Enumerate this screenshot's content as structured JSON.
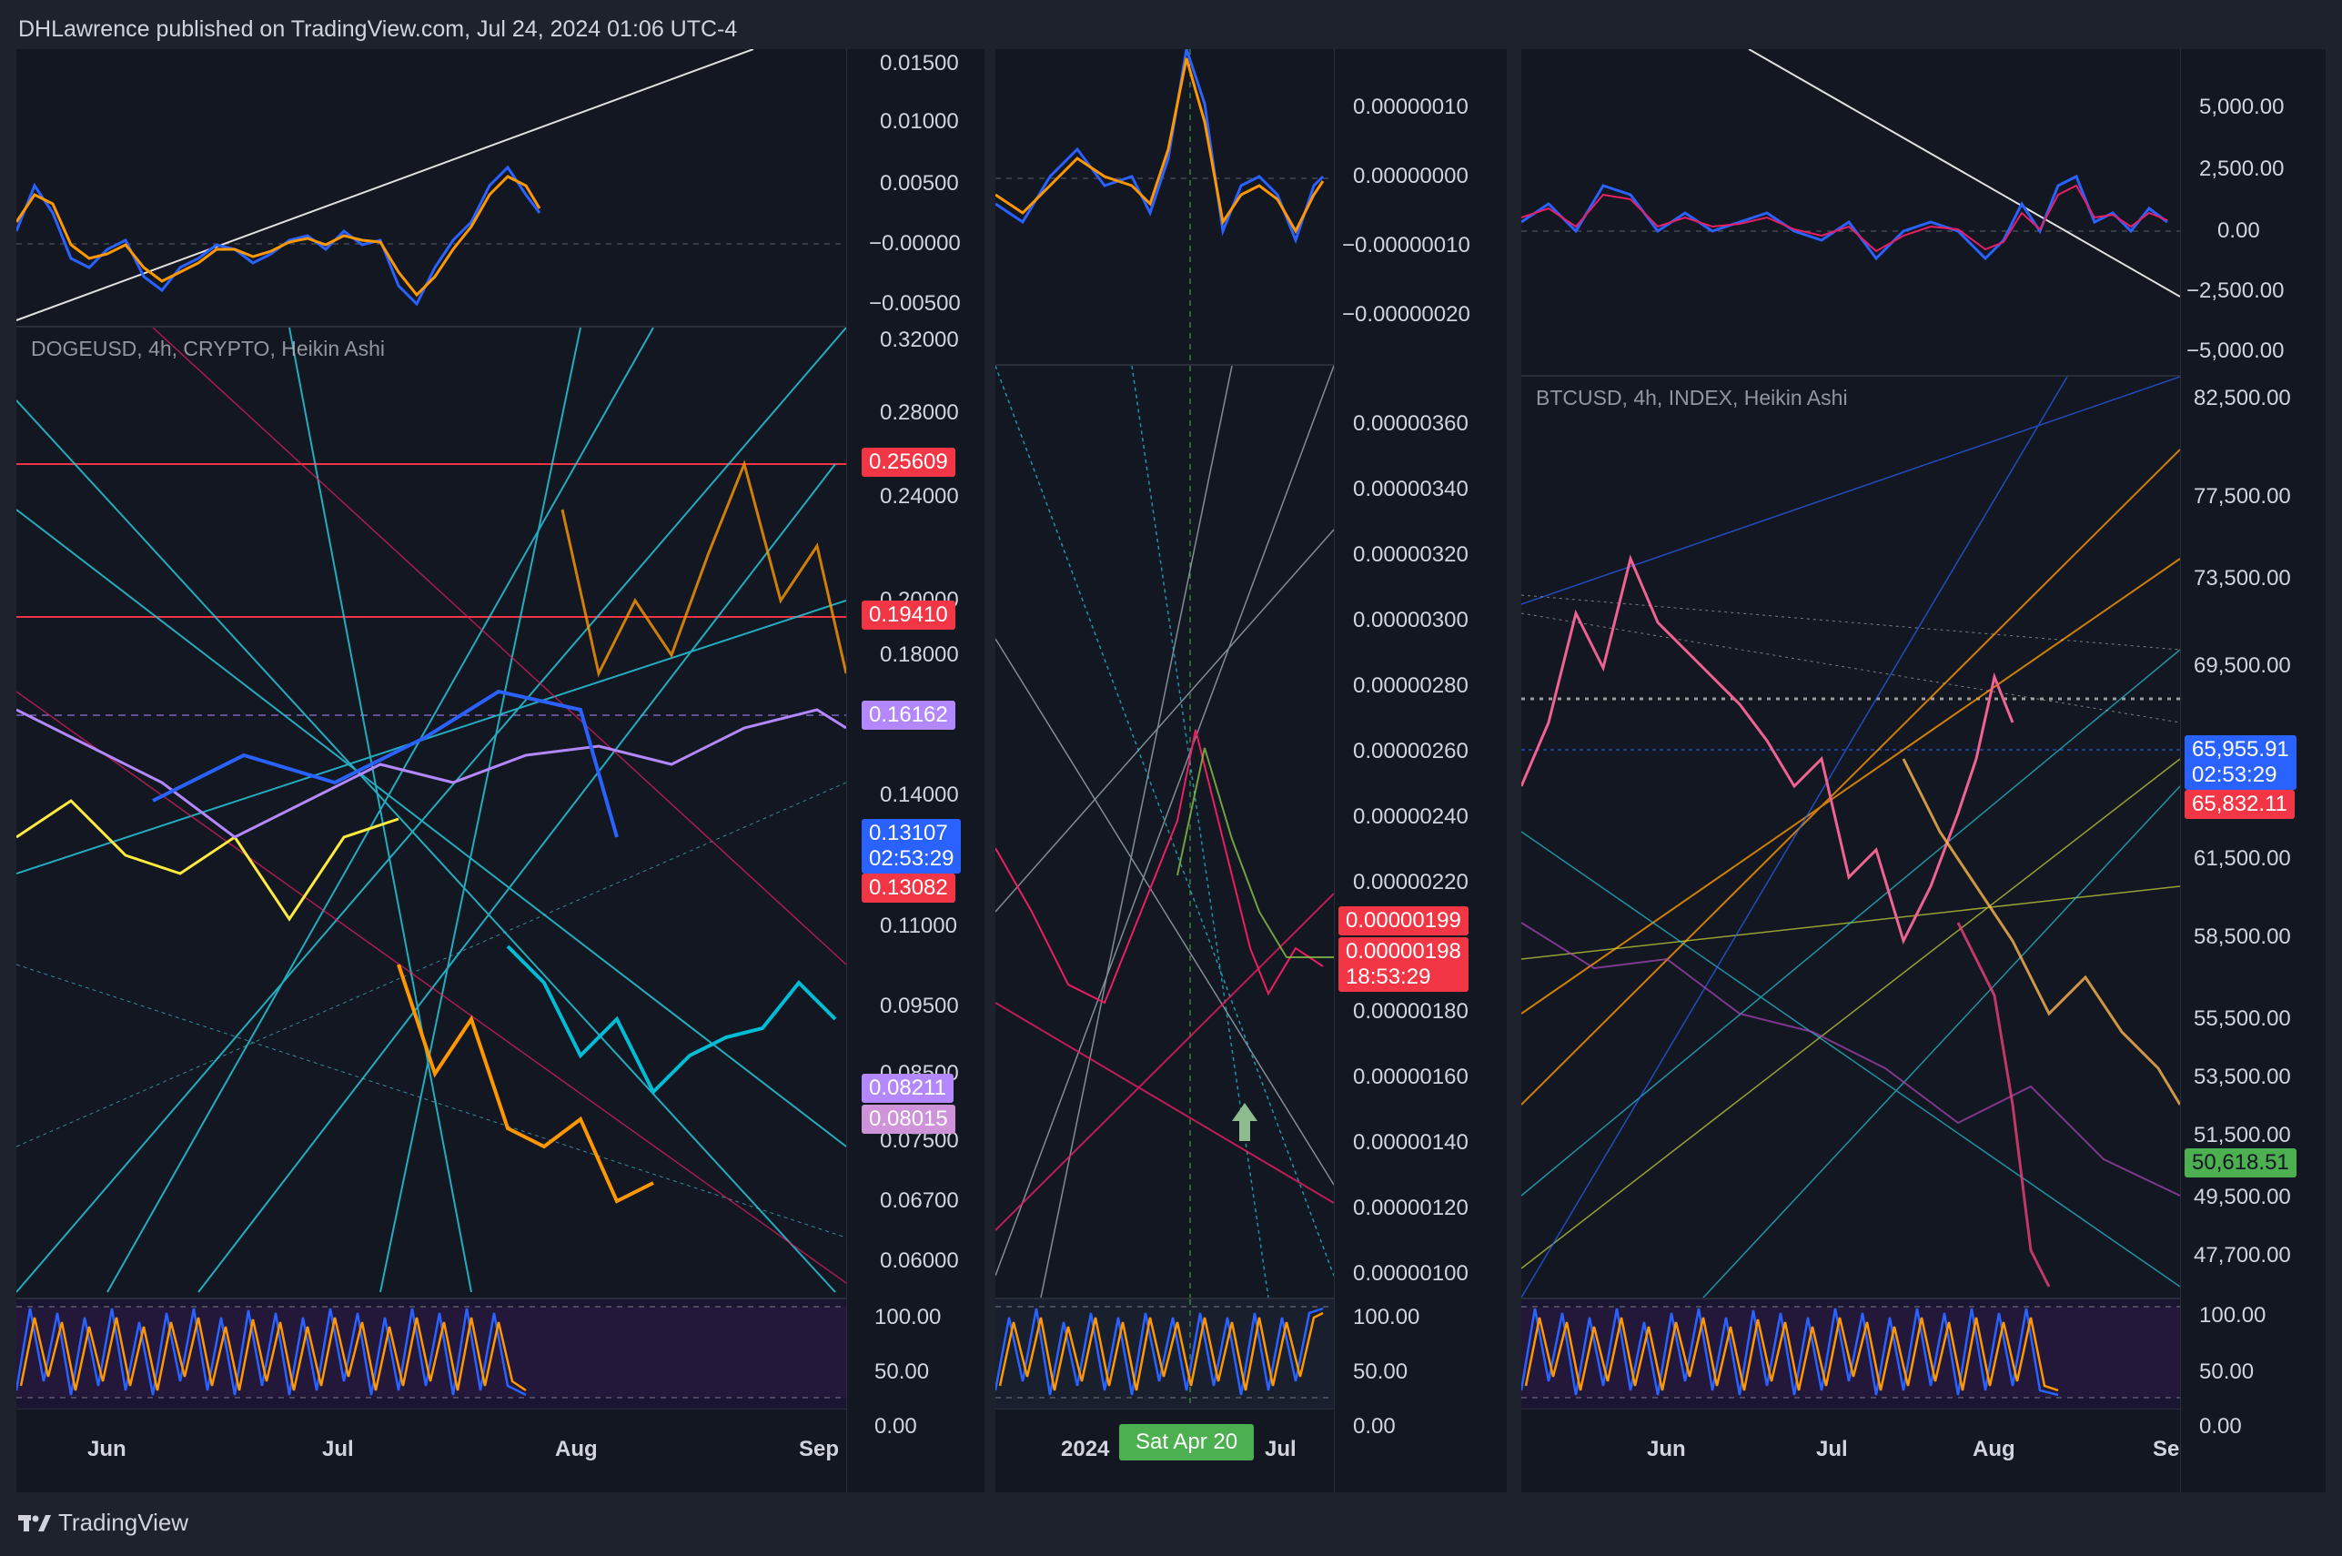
{
  "header": {
    "text": "DHLawrence published on TradingView.com, Jul 24, 2024 01:06 UTC-4"
  },
  "footer": {
    "brand": "TradingView"
  },
  "colors": {
    "bg": "#131722",
    "frame": "#1e222d",
    "up": "#26a69a",
    "down": "#ef5350",
    "macd": "#2962ff",
    "signal": "#ff9800"
  },
  "charts": [
    {
      "symbol": "DOGEUSD, 4h, CRYPTO, Heikin Ashi",
      "macd_ticks": [
        "0.01500",
        "0.01000",
        "0.00500",
        "−0.00000",
        "−0.00500"
      ],
      "price_ticks": [
        "0.32000",
        "0.28000",
        "0.24000",
        "0.20000",
        "0.18000",
        "0.14000",
        "0.11000",
        "0.09500",
        "0.08500",
        "0.07500",
        "0.06700",
        "0.06000"
      ],
      "price_labels": [
        {
          "value": "0.25609",
          "color": "#f23645"
        },
        {
          "value": "0.19410",
          "color": "#f23645"
        },
        {
          "value": "0.16162",
          "color": "#b388ff"
        },
        {
          "value": "0.13107",
          "sub": "02:53:29",
          "color": "#2962ff"
        },
        {
          "value": "0.13082",
          "color": "#f23645"
        },
        {
          "value": "0.08211",
          "color": "#b388ff"
        },
        {
          "value": "0.08015",
          "color": "#ce93d8"
        }
      ],
      "stoch_ticks": [
        "100.00",
        "50.00",
        "0.00"
      ],
      "time_labels": [
        "Jun",
        "Jul",
        "Aug",
        "Sep"
      ]
    },
    {
      "symbol": "",
      "macd_ticks": [
        "0.00000010",
        "0.00000000",
        "−0.00000010",
        "−0.00000020"
      ],
      "price_ticks": [
        "0.00000360",
        "0.00000340",
        "0.00000320",
        "0.00000300",
        "0.00000280",
        "0.00000260",
        "0.00000240",
        "0.00000220",
        "0.00000180",
        "0.00000160",
        "0.00000140",
        "0.00000120",
        "0.00000100"
      ],
      "price_labels": [
        {
          "value": "0.00000199",
          "color": "#f23645"
        },
        {
          "value": "0.00000198",
          "sub": "18:53:29",
          "color": "#f23645"
        }
      ],
      "stoch_ticks": [
        "100.00",
        "50.00",
        "0.00"
      ],
      "time_labels": [
        "2024",
        "Jul"
      ],
      "crosshair_date": "Sat Apr 20"
    },
    {
      "symbol": "BTCUSD, 4h, INDEX, Heikin Ashi",
      "macd_ticks": [
        "5,000.00",
        "2,500.00",
        "0.00",
        "−2,500.00",
        "−5,000.00"
      ],
      "price_ticks": [
        "82,500.00",
        "77,500.00",
        "73,500.00",
        "69,500.00",
        "61,500.00",
        "58,500.00",
        "55,500.00",
        "53,500.00",
        "51,500.00",
        "49,500.00",
        "47,700.00"
      ],
      "price_labels": [
        {
          "value": "65,955.91",
          "sub": "02:53:29",
          "color": "#2962ff"
        },
        {
          "value": "65,832.11",
          "color": "#f23645"
        },
        {
          "value": "50,618.51",
          "color": "#4caf50"
        }
      ],
      "stoch_ticks": [
        "100.00",
        "50.00",
        "0.00"
      ],
      "time_labels": [
        "Jun",
        "Jul",
        "Aug",
        "Se"
      ]
    }
  ]
}
